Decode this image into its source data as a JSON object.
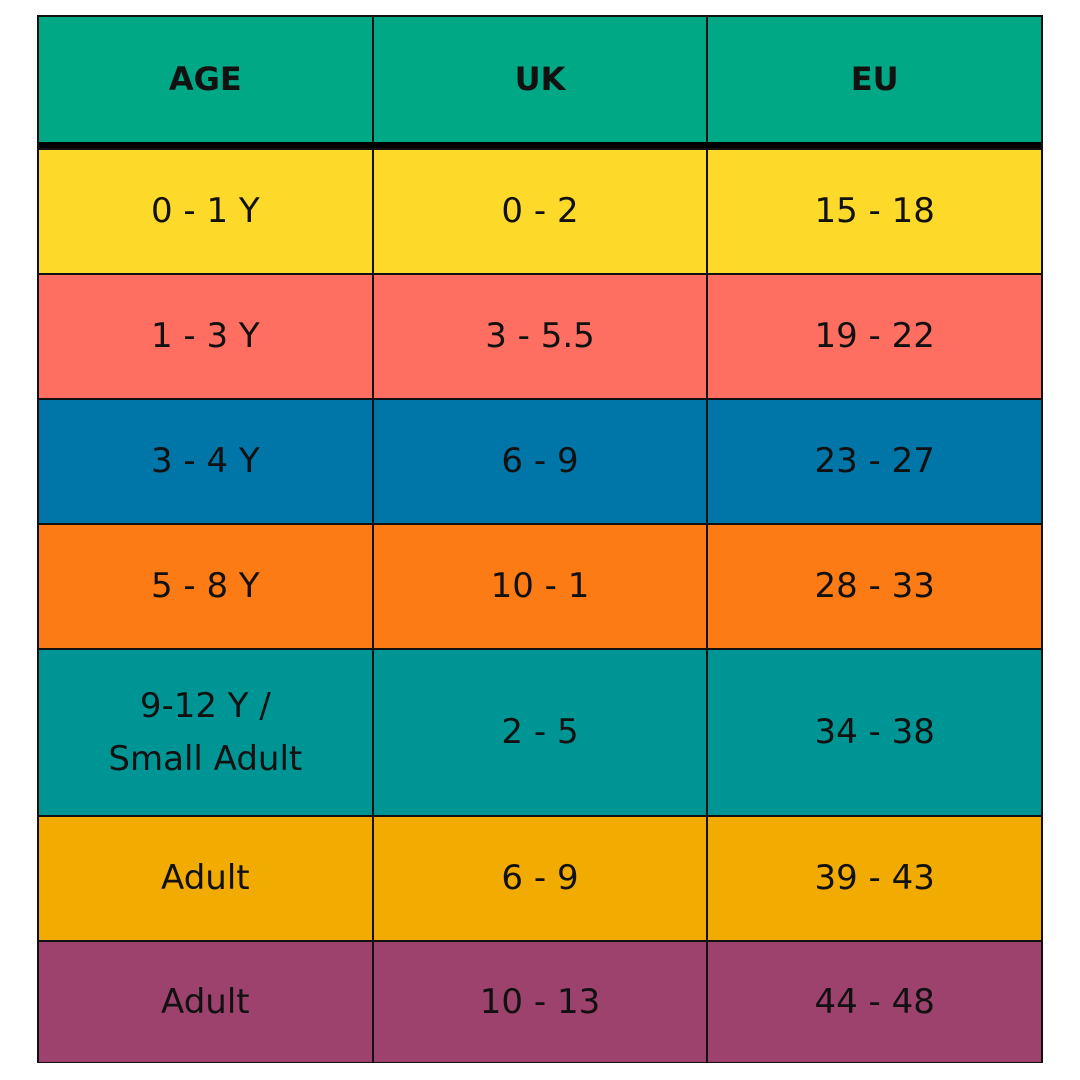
{
  "table": {
    "header": [
      "AGE",
      "UK",
      "EU"
    ],
    "rows": [
      [
        "0 - 1 Y",
        "0 - 2",
        "15 - 18"
      ],
      [
        "1 - 3 Y",
        "3 - 5.5",
        "19 - 22"
      ],
      [
        "3 - 4 Y",
        "6 - 9",
        "23 - 27"
      ],
      [
        "5 - 8 Y",
        "10 - 1",
        "28 - 33"
      ],
      [
        "9-12 Y /\nSmall Adult",
        "2 - 5",
        "34 - 38"
      ],
      [
        "Adult",
        "6 - 9",
        "39 - 43"
      ],
      [
        "Adult",
        "10 - 13",
        "44 - 48"
      ]
    ]
  }
}
